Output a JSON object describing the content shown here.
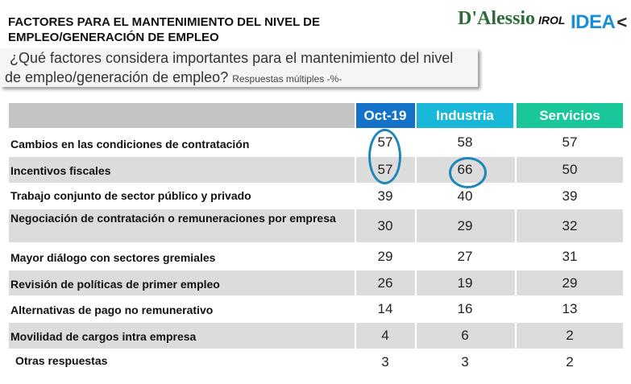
{
  "header": {
    "title": "FACTORES PARA EL MANTENIMIENTO DEL NIVEL DE EMPLEO/GENERACIÓN DE EMPLEO",
    "logo_dalessio": "D'Alessio",
    "logo_irol": "IROL",
    "logo_idea": "IDEA",
    "logo_idea_chevron": "<"
  },
  "question": {
    "text_line1": "¿Qué factores considera importantes para el mantenimiento del nivel",
    "text_line2": "de empleo/generación de empleo?",
    "note": "Respuestas múltiples -%-"
  },
  "colors": {
    "oct19": "#1473c9",
    "industria": "#19b8d9",
    "servicios": "#19c79a",
    "highlight": "#1f86b8",
    "row_gray": "#dcdcdc"
  },
  "chart_data": {
    "type": "table",
    "columns": [
      "Oct-19",
      "Industria",
      "Servicios"
    ],
    "rows": [
      {
        "label": "Cambios en las condiciones de contratación",
        "values": [
          "57",
          "58",
          "57"
        ]
      },
      {
        "label": "Incentivos fiscales",
        "values": [
          "57",
          "66",
          "50"
        ]
      },
      {
        "label": "Trabajo conjunto de sector público y privado",
        "values": [
          "39",
          "40",
          "39"
        ]
      },
      {
        "label": "Negociación de contratación o remuneraciones por empresa",
        "values": [
          "30",
          "29",
          "32"
        ]
      },
      {
        "label": "Mayor diálogo con sectores gremiales",
        "values": [
          "29",
          "27",
          "31"
        ]
      },
      {
        "label": "Revisión de políticas de primer empleo",
        "values": [
          "26",
          "19",
          "29"
        ]
      },
      {
        "label": "Alternativas de pago no remunerativo",
        "values": [
          "14",
          "16",
          "13"
        ]
      },
      {
        "label": "Movilidad de cargos intra empresa",
        "values": [
          "4",
          "6",
          "2"
        ]
      },
      {
        "label": "Otras respuestas",
        "values": [
          "3",
          "3",
          "2"
        ]
      }
    ],
    "highlighted": [
      {
        "row": 0,
        "column": "Oct-19"
      },
      {
        "row": 1,
        "column": "Oct-19"
      },
      {
        "row": 1,
        "column": "Industria"
      }
    ]
  }
}
